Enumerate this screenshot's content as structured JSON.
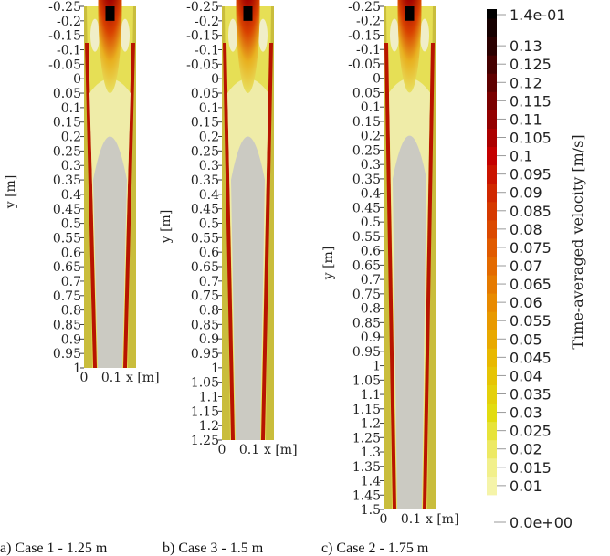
{
  "chart_data": {
    "type": "heatmap",
    "description_kind": "contour",
    "panels": [
      {
        "caption": "a) Case 1 - 1.25 m",
        "ylabel": "y [m]",
        "xlabel": "x [m]",
        "ylim": [
          -0.25,
          1.0
        ],
        "xlim": [
          0,
          0.19
        ],
        "yticks": [
          "-0.25",
          "-0.2",
          "-0.15",
          "-0.1",
          "-0.05",
          "0",
          "0.05",
          "0.1",
          "0.15",
          "0.2",
          "0.25",
          "0.3",
          "0.35",
          "0.4",
          "0.45",
          "0.5",
          "0.55",
          "0.6",
          "0.65",
          "0.7",
          "0.75",
          "0.8",
          "0.85",
          "0.9",
          "0.95",
          "1"
        ],
        "xticks": [
          "0",
          "0.1"
        ]
      },
      {
        "caption": "b) Case 3 - 1.5 m",
        "ylabel": "y [m]",
        "xlabel": "x [m]",
        "ylim": [
          -0.25,
          1.25
        ],
        "xlim": [
          0,
          0.19
        ],
        "yticks": [
          "-0.25",
          "-0.2",
          "-0.15",
          "-0.1",
          "-0.05",
          "0",
          "0.05",
          "0.1",
          "0.15",
          "0.2",
          "0.25",
          "0.3",
          "0.35",
          "0.4",
          "0.45",
          "0.5",
          "0.55",
          "0.6",
          "0.65",
          "0.7",
          "0.75",
          "0.8",
          "0.85",
          "0.9",
          "0.95",
          "1",
          "1.05",
          "1.1",
          "1.15",
          "1.2",
          "1.25"
        ],
        "xticks": [
          "0",
          "0.1"
        ]
      },
      {
        "caption": "c) Case 2 - 1.75 m",
        "ylabel": "y [m]",
        "xlabel": "x [m]",
        "ylim": [
          -0.25,
          1.5
        ],
        "xlim": [
          0,
          0.19
        ],
        "yticks": [
          "-0.25",
          "-0.2",
          "-0.15",
          "-0.1",
          "-0.05",
          "0",
          "0.05",
          "0.1",
          "0.15",
          "0.2",
          "0.25",
          "0.3",
          "0.35",
          "0.4",
          "0.45",
          "0.5",
          "0.55",
          "0.6",
          "0.65",
          "0.7",
          "0.75",
          "0.8",
          "0.85",
          "0.9",
          "0.95",
          "1",
          "1.05",
          "1.1",
          "1.15",
          "1.2",
          "1.25",
          "1.3",
          "1.35",
          "1.4",
          "1.45",
          "1.5"
        ],
        "xticks": [
          "0",
          "0.1"
        ]
      }
    ],
    "colorbar": {
      "title": "Time-averaged velocity [m/s]",
      "range": [
        0,
        0.14
      ],
      "max_label": "1.4e-01",
      "min_label": "0.0e+00",
      "tick_values": [
        0.13,
        0.125,
        0.12,
        0.115,
        0.11,
        0.105,
        0.1,
        0.095,
        0.09,
        0.085,
        0.08,
        0.075,
        0.07,
        0.065,
        0.06,
        0.055,
        0.05,
        0.045,
        0.04,
        0.035,
        0.03,
        0.025,
        0.02,
        0.015,
        0.01
      ],
      "tick_labels": [
        "0.13",
        "0.125",
        "0.12",
        "0.115",
        "0.11",
        "0.105",
        "0.1",
        "0.095",
        "0.09",
        "0.085",
        "0.08",
        "0.075",
        "0.07",
        "0.065",
        "0.06",
        "0.055",
        "0.05",
        "0.045",
        "0.04",
        "0.035",
        "0.03",
        "0.025",
        "0.02",
        "0.015",
        "0.01"
      ],
      "colormap_stops": [
        {
          "v": 0.0,
          "c": "#fbfbe2"
        },
        {
          "v": 0.015,
          "c": "#f2f08c"
        },
        {
          "v": 0.03,
          "c": "#e2dc10"
        },
        {
          "v": 0.045,
          "c": "#e8b800"
        },
        {
          "v": 0.06,
          "c": "#e88a00"
        },
        {
          "v": 0.075,
          "c": "#e05a00"
        },
        {
          "v": 0.09,
          "c": "#d02800"
        },
        {
          "v": 0.1,
          "c": "#c40000"
        },
        {
          "v": 0.115,
          "c": "#7a0000"
        },
        {
          "v": 0.13,
          "c": "#2a0000"
        },
        {
          "v": 0.14,
          "c": "#000000"
        }
      ]
    }
  },
  "colors": {
    "wall_region": "#c9bd3c",
    "core": "#cbcac2",
    "jet": "#b00000",
    "stripe": "#b81400"
  }
}
